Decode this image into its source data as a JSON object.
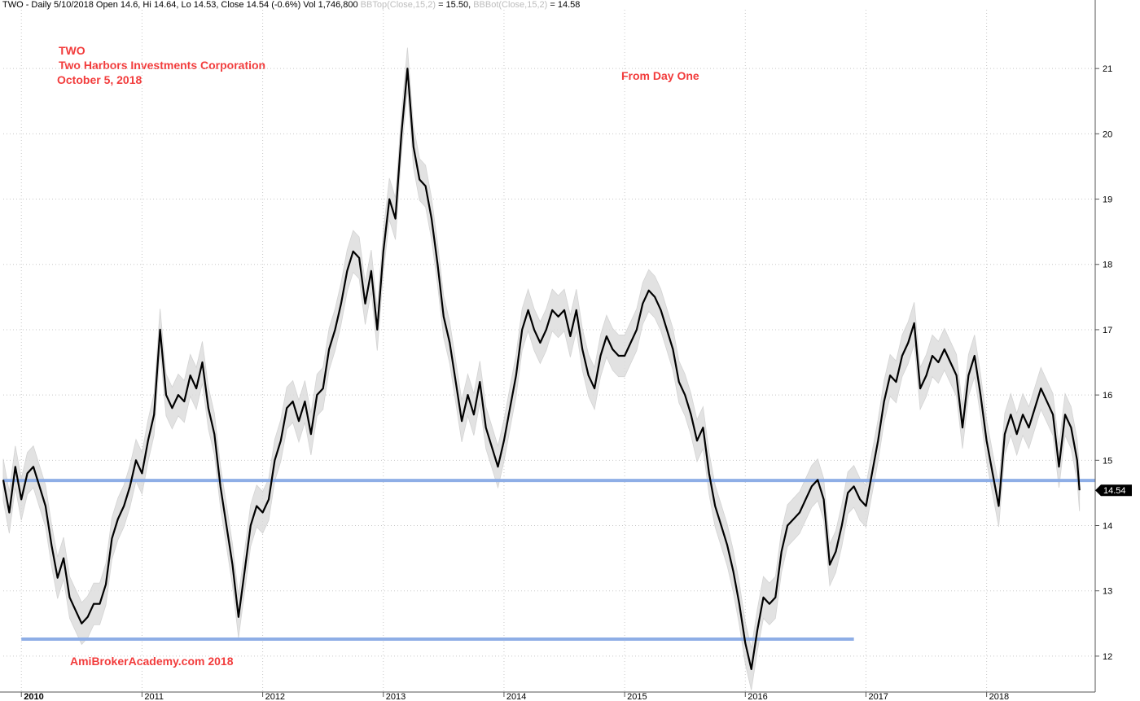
{
  "header": {
    "symbol": "TWO",
    "quote_text": "TWO - Daily 5/10/2018 Open 14.6, Hi 14.64, Lo 14.53, Close 14.54 (-0.6%) Vol 1,746,800",
    "bbtop_label": "BBTop(Close,15,2)",
    "bbtop_value": "= 15.50,",
    "bbbot_label": "BBBot(Close,15,2)",
    "bbbot_value": "= 14.58"
  },
  "annotations": {
    "ticker": "TWO",
    "company": "Two Harbors Investments Corporation",
    "date": "October 5, 2018",
    "subtitle": "From Day One",
    "watermark": "AmiBrokerAcademy.com  2018"
  },
  "price_tag": "14.54",
  "colors": {
    "price": "#000000",
    "band": "#dcdcdc",
    "support": "#8eaee6",
    "annotation": "#f23c3c",
    "grid": "#c8c8c8"
  },
  "chart_data": {
    "type": "line",
    "title": "",
    "xlabel": "",
    "ylabel": "",
    "ylim": [
      11.45,
      21.9
    ],
    "xlim": [
      2009.85,
      2018.9
    ],
    "y_ticks": [
      12,
      13,
      14,
      15,
      16,
      17,
      18,
      19,
      20,
      21
    ],
    "x_ticks": [
      "2010",
      "2011",
      "2012",
      "2013",
      "2014",
      "2015",
      "2016",
      "2017",
      "2018"
    ],
    "grid": "vertical and horizontal dotted",
    "series": [
      {
        "values": [
          [
            2009.85,
            14.7
          ],
          [
            2009.9,
            14.2
          ],
          [
            2009.95,
            14.9
          ],
          [
            2010.0,
            14.4
          ],
          [
            2010.05,
            14.8
          ],
          [
            2010.1,
            14.9
          ],
          [
            2010.15,
            14.6
          ],
          [
            2010.2,
            14.3
          ],
          [
            2010.25,
            13.7
          ],
          [
            2010.3,
            13.2
          ],
          [
            2010.35,
            13.5
          ],
          [
            2010.4,
            12.9
          ],
          [
            2010.45,
            12.7
          ],
          [
            2010.5,
            12.5
          ],
          [
            2010.55,
            12.6
          ],
          [
            2010.6,
            12.8
          ],
          [
            2010.65,
            12.8
          ],
          [
            2010.7,
            13.1
          ],
          [
            2010.75,
            13.8
          ],
          [
            2010.8,
            14.1
          ],
          [
            2010.85,
            14.3
          ],
          [
            2010.9,
            14.6
          ],
          [
            2010.95,
            15.0
          ],
          [
            2011.0,
            14.8
          ],
          [
            2011.05,
            15.3
          ],
          [
            2011.1,
            15.7
          ],
          [
            2011.15,
            17.0
          ],
          [
            2011.2,
            16.0
          ],
          [
            2011.25,
            15.8
          ],
          [
            2011.3,
            16.0
          ],
          [
            2011.35,
            15.9
          ],
          [
            2011.4,
            16.3
          ],
          [
            2011.45,
            16.1
          ],
          [
            2011.5,
            16.5
          ],
          [
            2011.55,
            15.8
          ],
          [
            2011.6,
            15.4
          ],
          [
            2011.65,
            14.6
          ],
          [
            2011.7,
            14.0
          ],
          [
            2011.75,
            13.4
          ],
          [
            2011.8,
            12.6
          ],
          [
            2011.85,
            13.3
          ],
          [
            2011.9,
            14.0
          ],
          [
            2011.95,
            14.3
          ],
          [
            2012.0,
            14.2
          ],
          [
            2012.05,
            14.4
          ],
          [
            2012.1,
            15.0
          ],
          [
            2012.15,
            15.3
          ],
          [
            2012.2,
            15.8
          ],
          [
            2012.25,
            15.9
          ],
          [
            2012.3,
            15.6
          ],
          [
            2012.35,
            15.9
          ],
          [
            2012.4,
            15.4
          ],
          [
            2012.45,
            16.0
          ],
          [
            2012.5,
            16.1
          ],
          [
            2012.55,
            16.7
          ],
          [
            2012.6,
            17.0
          ],
          [
            2012.65,
            17.4
          ],
          [
            2012.7,
            17.9
          ],
          [
            2012.75,
            18.2
          ],
          [
            2012.8,
            18.1
          ],
          [
            2012.85,
            17.4
          ],
          [
            2012.9,
            17.9
          ],
          [
            2012.95,
            17.0
          ],
          [
            2013.0,
            18.2
          ],
          [
            2013.05,
            19.0
          ],
          [
            2013.1,
            18.7
          ],
          [
            2013.15,
            20.0
          ],
          [
            2013.2,
            21.0
          ],
          [
            2013.25,
            19.8
          ],
          [
            2013.3,
            19.3
          ],
          [
            2013.35,
            19.2
          ],
          [
            2013.4,
            18.7
          ],
          [
            2013.45,
            18.0
          ],
          [
            2013.5,
            17.2
          ],
          [
            2013.55,
            16.8
          ],
          [
            2013.6,
            16.2
          ],
          [
            2013.65,
            15.6
          ],
          [
            2013.7,
            16.0
          ],
          [
            2013.75,
            15.7
          ],
          [
            2013.8,
            16.2
          ],
          [
            2013.85,
            15.5
          ],
          [
            2013.9,
            15.2
          ],
          [
            2013.95,
            14.9
          ],
          [
            2014.0,
            15.3
          ],
          [
            2014.05,
            15.8
          ],
          [
            2014.1,
            16.3
          ],
          [
            2014.15,
            17.0
          ],
          [
            2014.2,
            17.3
          ],
          [
            2014.25,
            17.0
          ],
          [
            2014.3,
            16.8
          ],
          [
            2014.35,
            17.0
          ],
          [
            2014.4,
            17.3
          ],
          [
            2014.45,
            17.2
          ],
          [
            2014.5,
            17.3
          ],
          [
            2014.55,
            16.9
          ],
          [
            2014.6,
            17.3
          ],
          [
            2014.65,
            16.7
          ],
          [
            2014.7,
            16.3
          ],
          [
            2014.75,
            16.1
          ],
          [
            2014.8,
            16.6
          ],
          [
            2014.85,
            16.9
          ],
          [
            2014.9,
            16.7
          ],
          [
            2014.95,
            16.6
          ],
          [
            2015.0,
            16.6
          ],
          [
            2015.05,
            16.8
          ],
          [
            2015.1,
            17.0
          ],
          [
            2015.15,
            17.4
          ],
          [
            2015.2,
            17.6
          ],
          [
            2015.25,
            17.5
          ],
          [
            2015.3,
            17.3
          ],
          [
            2015.35,
            17.0
          ],
          [
            2015.4,
            16.7
          ],
          [
            2015.45,
            16.2
          ],
          [
            2015.5,
            16.0
          ],
          [
            2015.55,
            15.7
          ],
          [
            2015.6,
            15.3
          ],
          [
            2015.65,
            15.5
          ],
          [
            2015.7,
            14.8
          ],
          [
            2015.75,
            14.3
          ],
          [
            2015.8,
            14.0
          ],
          [
            2015.85,
            13.7
          ],
          [
            2015.9,
            13.3
          ],
          [
            2015.95,
            12.8
          ],
          [
            2016.0,
            12.2
          ],
          [
            2016.05,
            11.8
          ],
          [
            2016.1,
            12.4
          ],
          [
            2016.15,
            12.9
          ],
          [
            2016.2,
            12.8
          ],
          [
            2016.25,
            12.9
          ],
          [
            2016.3,
            13.6
          ],
          [
            2016.35,
            14.0
          ],
          [
            2016.4,
            14.1
          ],
          [
            2016.45,
            14.2
          ],
          [
            2016.5,
            14.4
          ],
          [
            2016.55,
            14.6
          ],
          [
            2016.6,
            14.7
          ],
          [
            2016.65,
            14.4
          ],
          [
            2016.7,
            13.4
          ],
          [
            2016.75,
            13.6
          ],
          [
            2016.8,
            14.0
          ],
          [
            2016.85,
            14.5
          ],
          [
            2016.9,
            14.6
          ],
          [
            2016.95,
            14.4
          ],
          [
            2017.0,
            14.3
          ],
          [
            2017.05,
            14.8
          ],
          [
            2017.1,
            15.3
          ],
          [
            2017.15,
            15.9
          ],
          [
            2017.2,
            16.3
          ],
          [
            2017.25,
            16.2
          ],
          [
            2017.3,
            16.6
          ],
          [
            2017.35,
            16.8
          ],
          [
            2017.4,
            17.1
          ],
          [
            2017.45,
            16.1
          ],
          [
            2017.5,
            16.3
          ],
          [
            2017.55,
            16.6
          ],
          [
            2017.6,
            16.5
          ],
          [
            2017.65,
            16.7
          ],
          [
            2017.7,
            16.5
          ],
          [
            2017.75,
            16.3
          ],
          [
            2017.8,
            15.5
          ],
          [
            2017.85,
            16.3
          ],
          [
            2017.9,
            16.6
          ],
          [
            2017.95,
            16.0
          ],
          [
            2018.0,
            15.3
          ],
          [
            2018.05,
            14.8
          ],
          [
            2018.1,
            14.3
          ],
          [
            2018.15,
            15.4
          ],
          [
            2018.2,
            15.7
          ],
          [
            2018.25,
            15.4
          ],
          [
            2018.3,
            15.7
          ],
          [
            2018.35,
            15.5
          ],
          [
            2018.4,
            15.8
          ],
          [
            2018.45,
            16.1
          ],
          [
            2018.5,
            15.9
          ],
          [
            2018.55,
            15.7
          ],
          [
            2018.6,
            14.9
          ],
          [
            2018.65,
            15.7
          ],
          [
            2018.7,
            15.5
          ],
          [
            2018.75,
            15.0
          ],
          [
            2018.77,
            14.54
          ]
        ]
      }
    ],
    "horizontal_lines": [
      {
        "y": 14.69,
        "x_from": 2009.85,
        "x_to": 2018.9
      },
      {
        "y": 12.26,
        "x_from": 2010.0,
        "x_to": 2016.9
      }
    ],
    "last_value": 14.54
  }
}
